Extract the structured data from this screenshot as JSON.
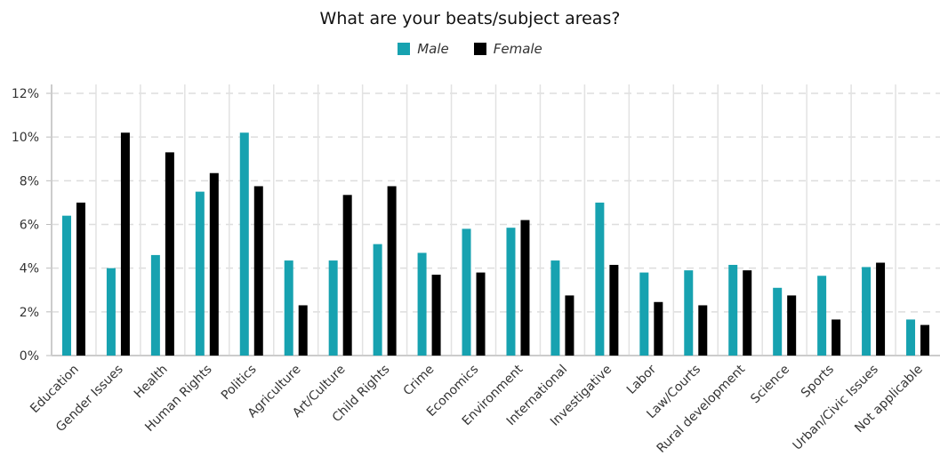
{
  "chart_data": {
    "type": "bar",
    "title": "What are your beats/subject areas?",
    "categories": [
      "Education",
      "Gender Issues",
      "Health",
      "Human Rights",
      "Politics",
      "Agriculture",
      "Art/Culture",
      "Child Rights",
      "Crime",
      "Economics",
      "Environment",
      "International",
      "Investigative",
      "Labor",
      "Law/Courts",
      "Rural development",
      "Science",
      "Sports",
      "Urban/Civic Issues",
      "Not applicable"
    ],
    "series": [
      {
        "name": "Male",
        "color": "#17a2b0",
        "values": [
          6.4,
          4.0,
          4.6,
          7.5,
          10.2,
          4.35,
          4.35,
          5.1,
          4.7,
          5.8,
          5.85,
          4.35,
          7.0,
          3.8,
          3.9,
          4.15,
          3.1,
          3.65,
          4.05,
          1.65
        ]
      },
      {
        "name": "Female",
        "color": "#000000",
        "values": [
          7.0,
          10.2,
          9.3,
          8.35,
          7.75,
          2.3,
          7.35,
          7.75,
          3.7,
          3.8,
          6.2,
          2.75,
          4.15,
          2.45,
          2.3,
          3.9,
          2.75,
          1.65,
          4.25,
          1.4
        ]
      }
    ],
    "ylim": [
      0,
      12
    ],
    "yticks": [
      "0%",
      "2%",
      "4%",
      "6%",
      "8%",
      "10%",
      "12%"
    ],
    "ytick_values": [
      0,
      2,
      4,
      6,
      8,
      10,
      12
    ],
    "grid": true,
    "legend_position": "top-center"
  }
}
